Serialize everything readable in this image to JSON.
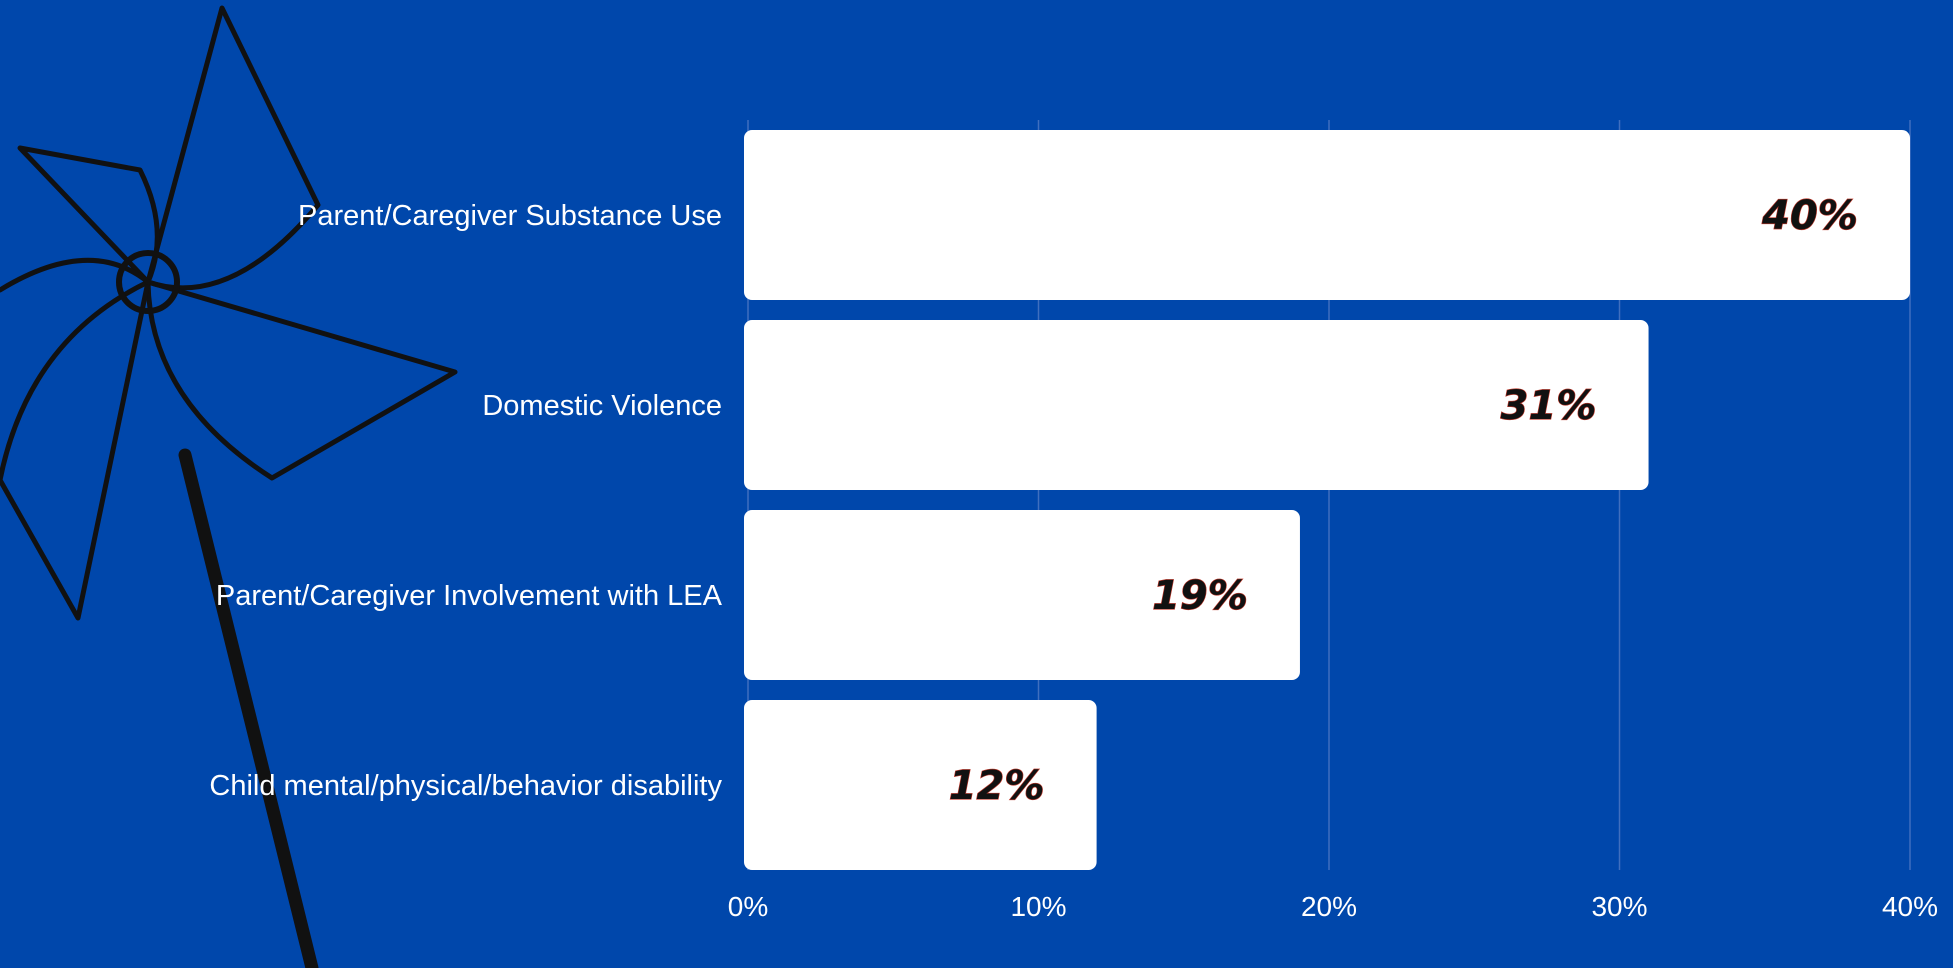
{
  "chart_data": {
    "type": "bar",
    "orientation": "horizontal",
    "categories": [
      "Parent/Caregiver Substance Use",
      "Domestic Violence",
      "Parent/Caregiver Involvement with LEA",
      "Child mental/physical/behavior disability"
    ],
    "values": [
      40,
      31,
      19,
      12
    ],
    "data_labels": [
      "40%",
      "31%",
      "19%",
      "12%"
    ],
    "x_ticks": [
      "0%",
      "10%",
      "20%",
      "30%",
      "40%"
    ],
    "x_tick_values": [
      0,
      10,
      20,
      30,
      40
    ],
    "xlim": [
      0,
      40
    ],
    "title": "",
    "xlabel": "",
    "ylabel": "",
    "grid": "vertical",
    "legend": "none",
    "colors": {
      "background": "#0047AB",
      "bar": "#FFFFFF",
      "gridline": "#3F6FBF",
      "text": "#FFFFFF",
      "data_label": "#111111",
      "decoration": "#111111"
    }
  },
  "decoration": {
    "icon": "pinwheel-icon"
  }
}
